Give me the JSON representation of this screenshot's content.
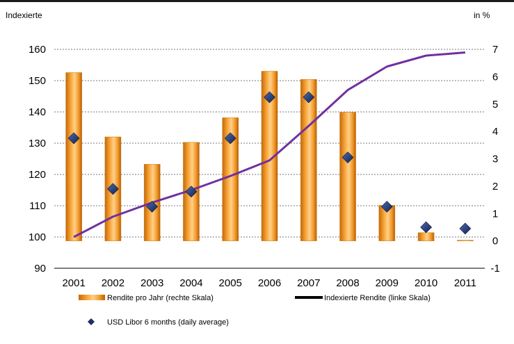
{
  "left_unit_label": "Indexierte",
  "right_unit_label": "in %",
  "chart_data": {
    "type": "bar+line+scatter",
    "categories": [
      "2001",
      "2002",
      "2003",
      "2004",
      "2005",
      "2006",
      "2007",
      "2008",
      "2009",
      "2010",
      "2011"
    ],
    "left_axis": {
      "min": 90,
      "max": 160,
      "ticks": [
        90,
        100,
        110,
        120,
        130,
        140,
        150,
        160
      ]
    },
    "right_axis": {
      "min": -1,
      "max": 7,
      "ticks": [
        -1,
        0,
        1,
        2,
        3,
        4,
        5,
        6,
        7
      ]
    },
    "grid": true,
    "series": [
      {
        "name": "Rendite pro Jahr (rechte Skala)",
        "type": "bar",
        "axis": "right",
        "color": "#F5A02A",
        "values": [
          6.15,
          3.8,
          2.8,
          3.6,
          4.5,
          6.2,
          5.9,
          4.7,
          1.3,
          0.3,
          0.0
        ]
      },
      {
        "name": "Indexierte Rendite (linke Skala)",
        "type": "line",
        "axis": "left",
        "color": "#7030A0",
        "values": [
          100.0,
          106.5,
          111.0,
          115.0,
          119.5,
          124.5,
          135.5,
          147.0,
          154.5,
          158.0,
          159.0
        ]
      },
      {
        "name": "USD Libor 6 months (daily average)",
        "type": "scatter",
        "axis": "right",
        "color": "#1F2F66",
        "values": [
          3.75,
          1.9,
          1.25,
          1.8,
          3.75,
          5.25,
          5.25,
          3.05,
          1.25,
          0.5,
          0.45
        ]
      }
    ],
    "legend_placement": "bottom"
  }
}
